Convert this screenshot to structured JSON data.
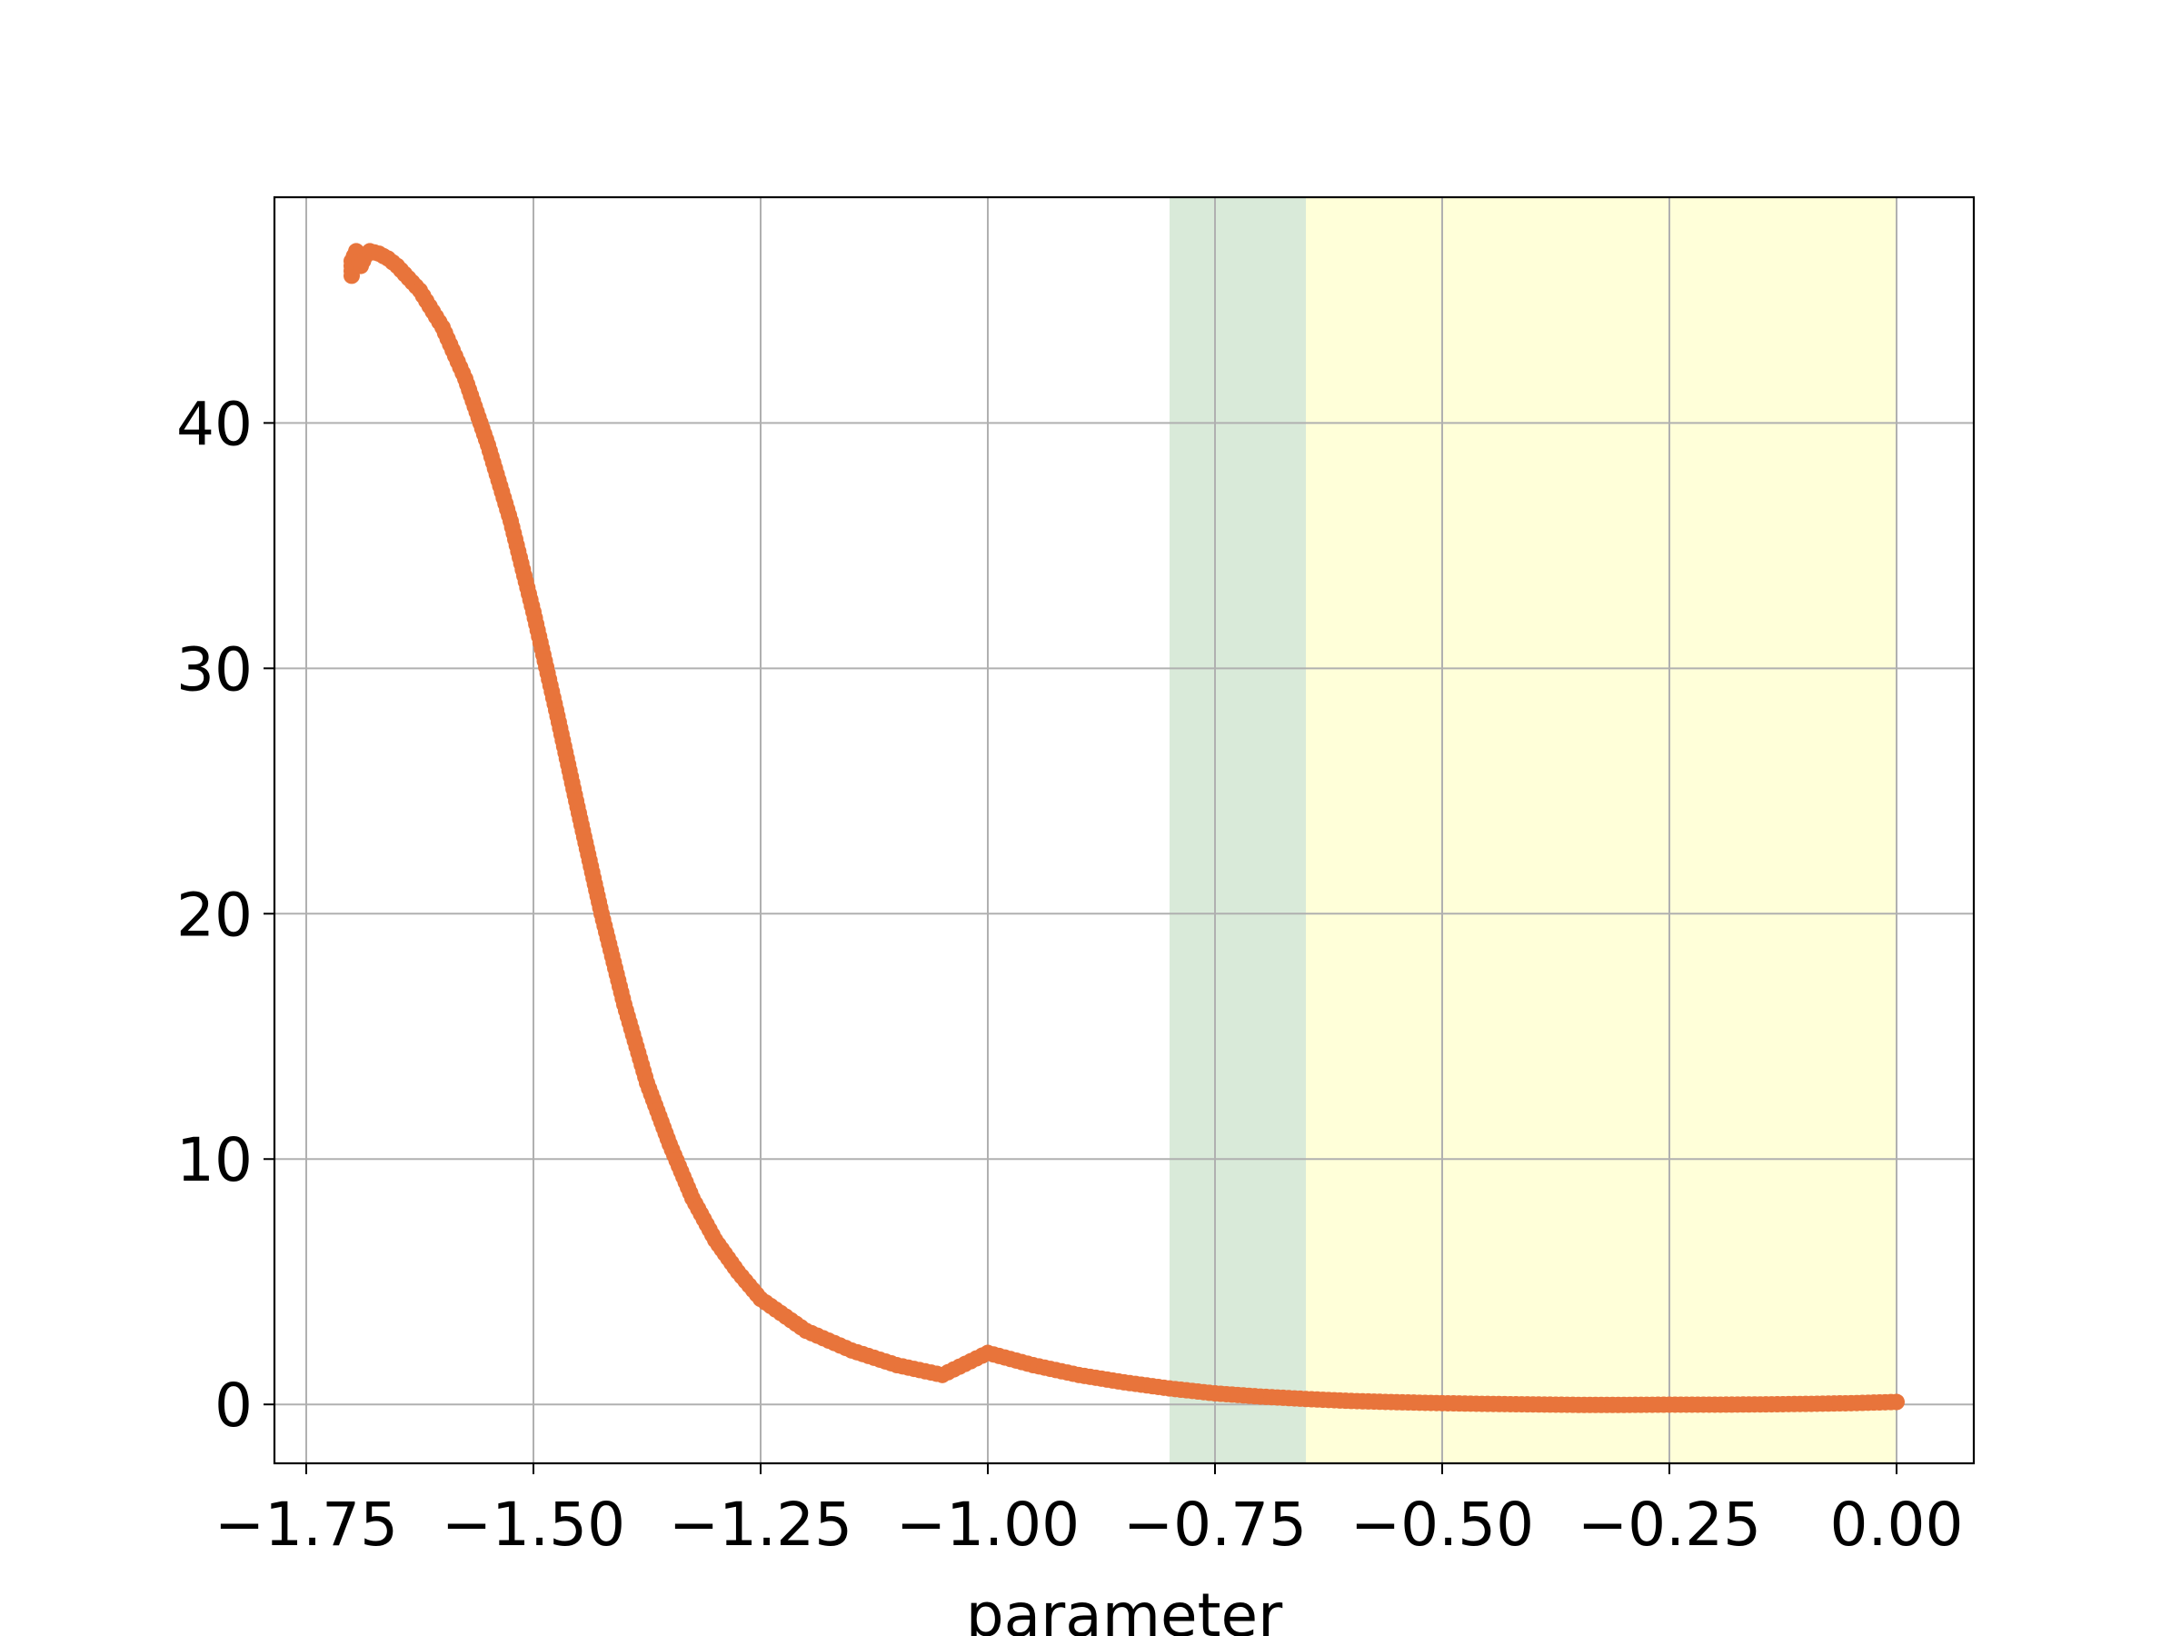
{
  "chart_data": {
    "type": "scatter",
    "title": "",
    "xlabel": "parameter",
    "ylabel": "",
    "xlim": [
      -1.785,
      0.085
    ],
    "ylim": [
      -2.4,
      49.2
    ],
    "grid": true,
    "x_ticks": [
      -1.75,
      -1.5,
      -1.25,
      -1.0,
      -0.75,
      -0.5,
      -0.25,
      0.0
    ],
    "x_tick_labels": [
      "−1.75",
      "−1.50",
      "−1.25",
      "−1.00",
      "−0.75",
      "−0.50",
      "−0.25",
      "0.00"
    ],
    "y_ticks": [
      0,
      10,
      20,
      30,
      40
    ],
    "y_tick_labels": [
      "0",
      "10",
      "20",
      "30",
      "40"
    ],
    "bands": [
      {
        "x_start": -0.8,
        "x_end": -0.65,
        "color": "#d9ead9"
      },
      {
        "x_start": -0.65,
        "x_end": 0.0,
        "color": "#ffffd9"
      }
    ],
    "series": [
      {
        "color": "#e8743b",
        "points": [
          [
            -1.7,
            46.0
          ],
          [
            -1.7,
            46.6
          ],
          [
            -1.695,
            47.0
          ],
          [
            -1.69,
            46.4
          ],
          [
            -1.685,
            46.8
          ],
          [
            -1.68,
            47.0
          ],
          [
            -1.67,
            46.9
          ],
          [
            -1.66,
            46.7
          ],
          [
            -1.65,
            46.4
          ],
          [
            -1.625,
            45.4
          ],
          [
            -1.6,
            43.9
          ],
          [
            -1.575,
            41.8
          ],
          [
            -1.55,
            39.1
          ],
          [
            -1.525,
            36.0
          ],
          [
            -1.5,
            32.3
          ],
          [
            -1.475,
            28.3
          ],
          [
            -1.45,
            24.1
          ],
          [
            -1.425,
            20.0
          ],
          [
            -1.4,
            16.3
          ],
          [
            -1.375,
            13.1
          ],
          [
            -1.35,
            10.6
          ],
          [
            -1.325,
            8.4
          ],
          [
            -1.3,
            6.7
          ],
          [
            -1.275,
            5.4
          ],
          [
            -1.25,
            4.3
          ],
          [
            -1.2,
            3.0
          ],
          [
            -1.15,
            2.2
          ],
          [
            -1.1,
            1.6
          ],
          [
            -1.05,
            1.2
          ],
          [
            -1.0,
            2.1
          ],
          [
            -0.95,
            1.6
          ],
          [
            -0.9,
            1.2
          ],
          [
            -0.85,
            0.9
          ],
          [
            -0.8,
            0.65
          ],
          [
            -0.75,
            0.45
          ],
          [
            -0.7,
            0.32
          ],
          [
            -0.65,
            0.22
          ],
          [
            -0.6,
            0.14
          ],
          [
            -0.55,
            0.09
          ],
          [
            -0.5,
            0.05
          ],
          [
            -0.45,
            0.02
          ],
          [
            -0.4,
            0.0
          ],
          [
            -0.35,
            -0.02
          ],
          [
            -0.3,
            -0.02
          ],
          [
            -0.25,
            -0.01
          ],
          [
            -0.2,
            -0.01
          ],
          [
            -0.15,
            0.0
          ],
          [
            -0.1,
            0.02
          ],
          [
            -0.05,
            0.05
          ],
          [
            0.0,
            0.1
          ]
        ]
      }
    ]
  }
}
